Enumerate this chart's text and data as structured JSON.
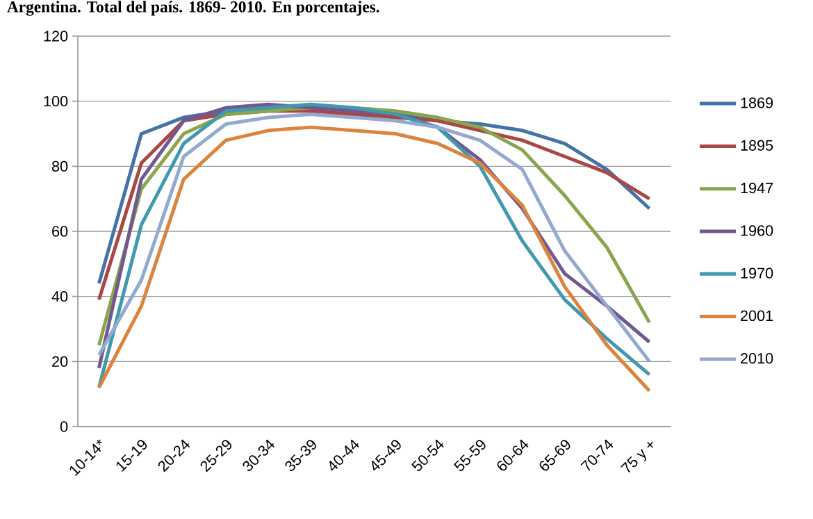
{
  "chart_data": {
    "type": "line",
    "title": "Argentina. Total del país. 1869- 2010. En porcentajes.",
    "categories": [
      "10-14*",
      "15-19",
      "20-24",
      "25-29",
      "30-34",
      "35-39",
      "40-44",
      "45-49",
      "50-54",
      "55-59",
      "60-64",
      "65-69",
      "70-74",
      "75 y +"
    ],
    "series": [
      {
        "name": "1869",
        "color": "#4572a7",
        "values": [
          44,
          90,
          95,
          97,
          98,
          98,
          97,
          96,
          94,
          93,
          91,
          87,
          79,
          67
        ]
      },
      {
        "name": "1895",
        "color": "#aa4643",
        "values": [
          39,
          81,
          94,
          96,
          97,
          97,
          96,
          95,
          94,
          91,
          88,
          83,
          78,
          70
        ]
      },
      {
        "name": "1947",
        "color": "#89a54e",
        "values": [
          25,
          73,
          90,
          96,
          97,
          98,
          98,
          97,
          95,
          92,
          85,
          71,
          55,
          32
        ]
      },
      {
        "name": "1960",
        "color": "#71588f",
        "values": [
          18,
          76,
          94,
          98,
          99,
          98,
          97,
          96,
          92,
          82,
          67,
          47,
          37,
          26
        ]
      },
      {
        "name": "1970",
        "color": "#4198af",
        "values": [
          12,
          62,
          87,
          97,
          98,
          99,
          98,
          96,
          92,
          80,
          57,
          39,
          27,
          16
        ]
      },
      {
        "name": "2001",
        "color": "#db843d",
        "values": [
          12,
          37,
          76,
          88,
          91,
          92,
          91,
          90,
          87,
          81,
          68,
          43,
          25,
          11
        ]
      },
      {
        "name": "2010",
        "color": "#93a9cf",
        "values": [
          22,
          45,
          83,
          93,
          95,
          96,
          95,
          94,
          92,
          88,
          79,
          54,
          37,
          20
        ]
      }
    ],
    "ylim": [
      0,
      120
    ],
    "yticks": [
      0,
      20,
      40,
      60,
      80,
      100,
      120
    ],
    "grid": "y",
    "legend": "right",
    "marker": "none",
    "line_style": "solid"
  }
}
